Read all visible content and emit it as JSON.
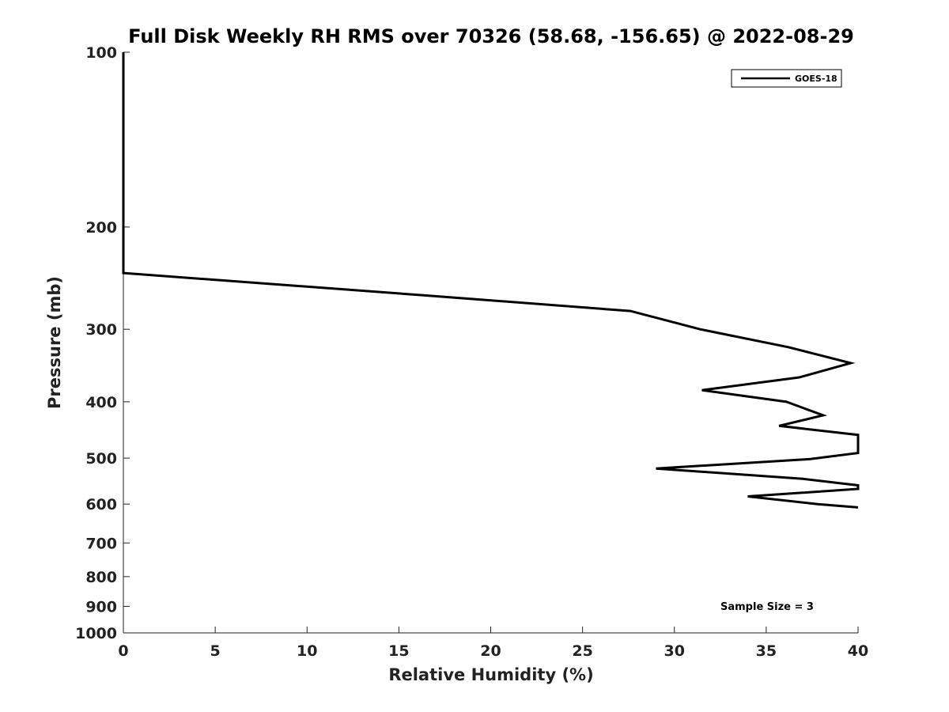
{
  "chart_data": {
    "type": "line",
    "title": "Full Disk Weekly RH RMS over 70326 (58.68, -156.65) @ 2022-08-29",
    "xlabel": "Relative Humidity (%)",
    "ylabel": "Pressure (mb)",
    "xlim": [
      0,
      40
    ],
    "ylim": [
      100,
      1000
    ],
    "y_scale": "log",
    "y_reversed": true,
    "x_ticks": [
      "0",
      "5",
      "10",
      "15",
      "20",
      "25",
      "30",
      "35",
      "40"
    ],
    "y_ticks": [
      "100",
      "200",
      "300",
      "400",
      "500",
      "600",
      "700",
      "800",
      "900",
      "1000"
    ],
    "grid": false,
    "legend_position": "top-right",
    "annotation": "Sample Size = 3",
    "series": [
      {
        "name": "GOES-18",
        "color": "#000000",
        "points": [
          [
            0,
            100
          ],
          [
            0,
            150
          ],
          [
            0,
            200
          ],
          [
            0,
            240
          ],
          [
            16.2,
            262
          ],
          [
            27.6,
            279
          ],
          [
            31.4,
            300
          ],
          [
            36.2,
            322
          ],
          [
            39.6,
            343
          ],
          [
            36.8,
            363
          ],
          [
            31.5,
            382
          ],
          [
            36.1,
            400
          ],
          [
            38.1,
            422
          ],
          [
            35.7,
            440
          ],
          [
            40,
            456
          ],
          [
            40,
            490
          ],
          [
            37.4,
            502
          ],
          [
            29,
            521
          ],
          [
            37,
            543
          ],
          [
            40,
            557
          ],
          [
            40,
            565
          ],
          [
            34,
            582
          ],
          [
            37.8,
            600
          ],
          [
            40,
            608
          ]
        ]
      }
    ]
  }
}
